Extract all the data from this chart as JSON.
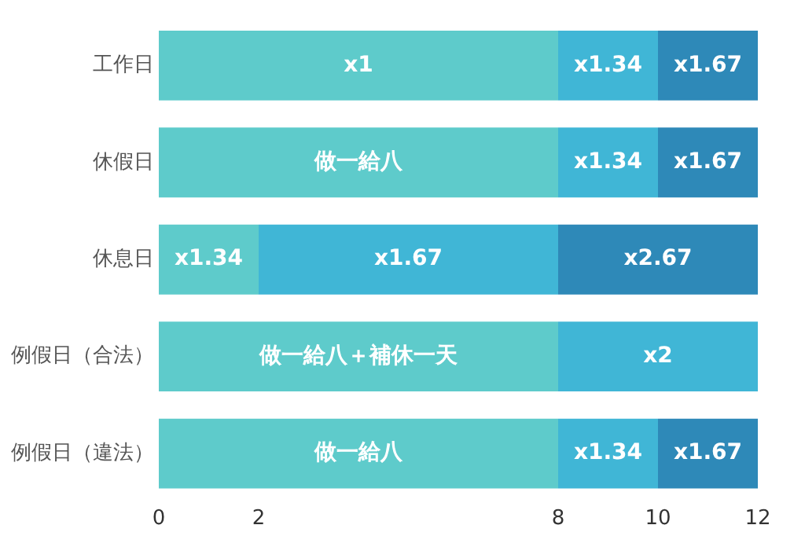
{
  "chart_data": {
    "type": "bar",
    "orientation": "horizontal",
    "stacked": true,
    "categories": [
      "工作日",
      "休假日",
      "休息日",
      "例假日（合法）",
      "例假日（違法）"
    ],
    "series": [
      {
        "color": "#5ecbcb",
        "values": [
          8,
          8,
          2,
          8,
          8
        ],
        "value_labels": [
          "x1",
          "做一給八",
          "x1.34",
          "做一給八＋補休一天",
          "做一給八"
        ]
      },
      {
        "color": "#40b6d6",
        "values": [
          2,
          2,
          6,
          4,
          2
        ],
        "value_labels": [
          "x1.34",
          "x1.34",
          "x1.67",
          "x2",
          "x1.34"
        ]
      },
      {
        "color": "#2e89b8",
        "values": [
          2,
          2,
          4,
          null,
          2
        ],
        "value_labels": [
          "x1.67",
          "x1.67",
          "x2.67",
          null,
          "x1.67"
        ]
      }
    ],
    "xlim": [
      0,
      12
    ],
    "xticks": [
      0,
      2,
      8,
      10,
      12
    ],
    "grid": false,
    "legend": false
  }
}
